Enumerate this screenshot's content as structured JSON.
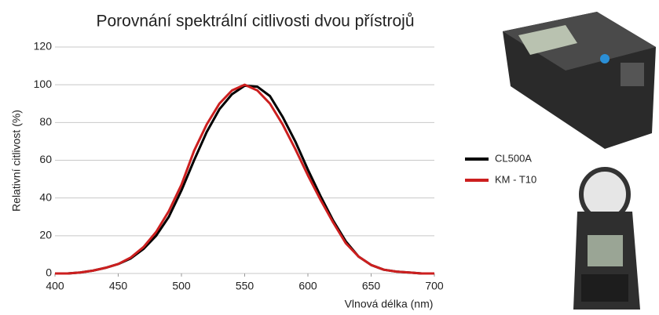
{
  "chart_data": {
    "type": "line",
    "title": "Porovnání spektrální citlivosti dvou přístrojů",
    "x_label": "Vlnová délka (nm)",
    "y_label": "Relativní citlivost (%)",
    "x": [
      400,
      410,
      420,
      430,
      440,
      450,
      460,
      470,
      480,
      490,
      500,
      510,
      520,
      530,
      540,
      550,
      560,
      570,
      580,
      590,
      600,
      610,
      620,
      630,
      640,
      650,
      660,
      670,
      680,
      690,
      700
    ],
    "series": [
      {
        "name": "CL500A",
        "color": "#000000",
        "values": [
          0,
          0,
          0.5,
          1.5,
          3,
          5,
          8,
          13,
          20,
          30,
          44,
          60,
          75,
          87,
          95,
          99.5,
          99,
          94,
          83,
          70,
          55,
          41,
          28,
          17,
          9,
          4.5,
          2,
          1,
          0.5,
          0,
          0
        ]
      },
      {
        "name": "KM - T10",
        "color": "#cc1f1f",
        "values": [
          0,
          0,
          0.5,
          1.5,
          3,
          5,
          8.5,
          14,
          22,
          33,
          47,
          65,
          79,
          90,
          97,
          100,
          97,
          90,
          79,
          66,
          52,
          39,
          27,
          16,
          9,
          4.5,
          2,
          1,
          0.5,
          0,
          0
        ]
      }
    ],
    "xlim": [
      400,
      700
    ],
    "xticks": [
      400,
      450,
      500,
      550,
      600,
      650,
      700
    ],
    "ylim": [
      0,
      120
    ],
    "yticks": [
      0,
      20,
      40,
      60,
      80,
      100,
      120
    ],
    "grid": true,
    "legend": "right"
  }
}
